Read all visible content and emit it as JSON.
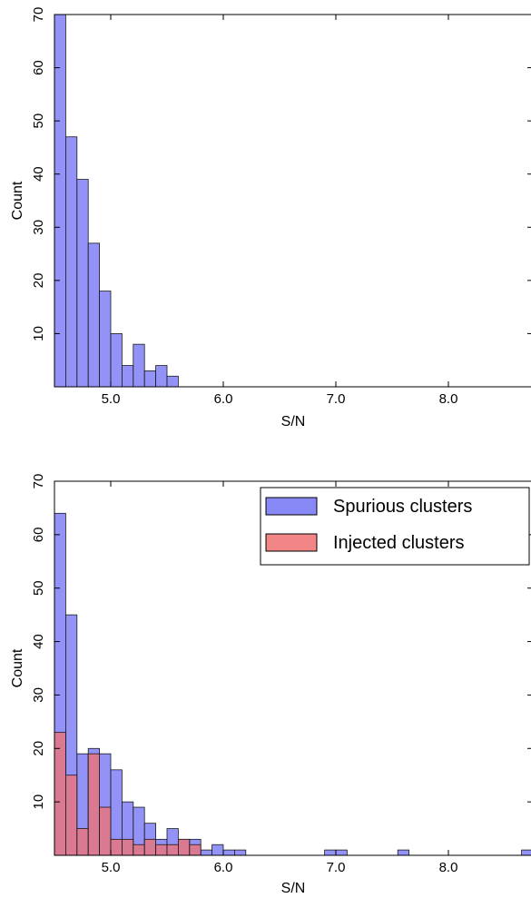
{
  "chart_data": [
    {
      "type": "bar",
      "xlabel": "S/N",
      "ylabel": "Count",
      "xlim": [
        4.5,
        8.75
      ],
      "ylim": [
        0,
        70
      ],
      "xticks": [
        "5.0",
        "6.0",
        "7.0",
        "8.0"
      ],
      "yticks": [
        "10",
        "20",
        "30",
        "40",
        "50",
        "60",
        "70"
      ],
      "bin_width": 0.1,
      "series": [
        {
          "color": "#7373f5",
          "bins": [
            {
              "x": 4.5,
              "count": 70
            },
            {
              "x": 4.6,
              "count": 47
            },
            {
              "x": 4.7,
              "count": 39
            },
            {
              "x": 4.8,
              "count": 27
            },
            {
              "x": 4.9,
              "count": 18
            },
            {
              "x": 5.0,
              "count": 10
            },
            {
              "x": 5.1,
              "count": 4
            },
            {
              "x": 5.2,
              "count": 8
            },
            {
              "x": 5.3,
              "count": 3
            },
            {
              "x": 5.4,
              "count": 4
            },
            {
              "x": 5.5,
              "count": 2
            }
          ]
        }
      ]
    },
    {
      "type": "bar",
      "xlabel": "S/N",
      "ylabel": "Count",
      "xlim": [
        4.5,
        8.75
      ],
      "ylim": [
        0,
        70
      ],
      "xticks": [
        "5.0",
        "6.0",
        "7.0",
        "8.0"
      ],
      "yticks": [
        "10",
        "20",
        "30",
        "40",
        "50",
        "60",
        "70"
      ],
      "legend_position": "top-right",
      "series": [
        {
          "name": "Spurious clusters",
          "color": "#7373f5",
          "bins": [
            {
              "x": 4.5,
              "w": 0.1,
              "count": 64
            },
            {
              "x": 4.6,
              "w": 0.1,
              "count": 45
            },
            {
              "x": 4.7,
              "w": 0.1,
              "count": 19
            },
            {
              "x": 4.8,
              "w": 0.1,
              "count": 20
            },
            {
              "x": 4.9,
              "w": 0.1,
              "count": 19
            },
            {
              "x": 5.0,
              "w": 0.1,
              "count": 16
            },
            {
              "x": 5.1,
              "w": 0.1,
              "count": 10
            },
            {
              "x": 5.2,
              "w": 0.1,
              "count": 9
            },
            {
              "x": 5.3,
              "w": 0.1,
              "count": 6
            },
            {
              "x": 5.4,
              "w": 0.1,
              "count": 3
            },
            {
              "x": 5.5,
              "w": 0.1,
              "count": 5
            },
            {
              "x": 5.6,
              "w": 0.1,
              "count": 3
            },
            {
              "x": 5.7,
              "w": 0.1,
              "count": 3
            },
            {
              "x": 5.8,
              "w": 0.1,
              "count": 1
            },
            {
              "x": 5.9,
              "w": 0.1,
              "count": 2
            },
            {
              "x": 6.0,
              "w": 0.1,
              "count": 1
            },
            {
              "x": 6.1,
              "w": 0.1,
              "count": 1
            },
            {
              "x": 6.9,
              "w": 0.1,
              "count": 1
            },
            {
              "x": 7.0,
              "w": 0.1,
              "count": 1
            },
            {
              "x": 7.55,
              "w": 0.1,
              "count": 1
            },
            {
              "x": 8.65,
              "w": 0.1,
              "count": 1
            }
          ]
        },
        {
          "name": "Injected clusters",
          "color": "#f07070",
          "bins": [
            {
              "x": 4.5,
              "w": 0.1,
              "count": 23
            },
            {
              "x": 4.6,
              "w": 0.1,
              "count": 15
            },
            {
              "x": 4.7,
              "w": 0.1,
              "count": 5
            },
            {
              "x": 4.8,
              "w": 0.1,
              "count": 19
            },
            {
              "x": 4.9,
              "w": 0.1,
              "count": 9
            },
            {
              "x": 5.0,
              "w": 0.1,
              "count": 3
            },
            {
              "x": 5.1,
              "w": 0.1,
              "count": 3
            },
            {
              "x": 5.2,
              "w": 0.1,
              "count": 2
            },
            {
              "x": 5.3,
              "w": 0.1,
              "count": 3
            },
            {
              "x": 5.4,
              "w": 0.1,
              "count": 2
            },
            {
              "x": 5.5,
              "w": 0.1,
              "count": 2
            },
            {
              "x": 5.6,
              "w": 0.1,
              "count": 3
            },
            {
              "x": 5.7,
              "w": 0.1,
              "count": 2
            }
          ]
        }
      ]
    }
  ]
}
